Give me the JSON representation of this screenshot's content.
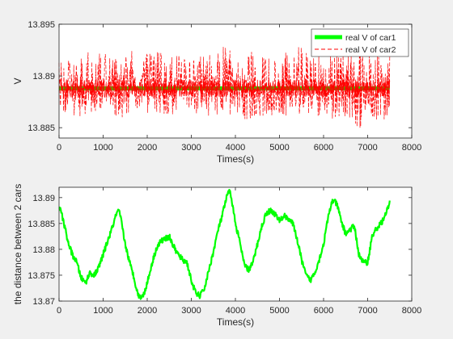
{
  "chart_data": [
    {
      "type": "line",
      "xlabel": "Times(s)",
      "ylabel": "V",
      "xlim": [
        0,
        8000
      ],
      "ylim": [
        13.884,
        13.895
      ],
      "xticks": [
        "0",
        "1000",
        "2000",
        "3000",
        "4000",
        "5000",
        "6000",
        "7000",
        "8000"
      ],
      "yticks": [
        "13.885",
        "13.89",
        "13.895"
      ],
      "legend_position": "top-right",
      "grid": false,
      "series": [
        {
          "name": "real V of car1",
          "color": "#00ff00",
          "style": "solid-thick",
          "x": [
            0,
            500,
            1000,
            1500,
            2000,
            2500,
            3000,
            3500,
            4000,
            4500,
            5000,
            5500,
            6000,
            6500,
            7000,
            7500
          ],
          "y": [
            13.8888,
            13.8888,
            13.8888,
            13.8888,
            13.8888,
            13.8888,
            13.8888,
            13.8888,
            13.8888,
            13.8888,
            13.8888,
            13.8888,
            13.8888,
            13.8888,
            13.8888,
            13.8888
          ]
        },
        {
          "name": "real V of car2",
          "color": "#ff0000",
          "style": "dashed",
          "x": [
            0,
            250,
            500,
            750,
            1000,
            1250,
            1500,
            1750,
            2000,
            2250,
            2500,
            2750,
            3000,
            3250,
            3500,
            3750,
            4000,
            4250,
            4500,
            4750,
            5000,
            5250,
            5500,
            5750,
            6000,
            6250,
            6500,
            6750,
            7000,
            7250,
            7500
          ],
          "y_center": 13.8888,
          "y_min": [
            13.8865,
            13.8862,
            13.886,
            13.8862,
            13.8863,
            13.8862,
            13.8858,
            13.8862,
            13.8863,
            13.8862,
            13.886,
            13.8865,
            13.8862,
            13.8862,
            13.886,
            13.8863,
            13.886,
            13.8858,
            13.886,
            13.8862,
            13.8862,
            13.886,
            13.886,
            13.8858,
            13.8862,
            13.8858,
            13.886,
            13.8843,
            13.8855,
            13.885,
            13.8865
          ],
          "y_max": [
            13.892,
            13.8932,
            13.8928,
            13.8925,
            13.8922,
            13.893,
            13.8928,
            13.8925,
            13.8922,
            13.8928,
            13.892,
            13.8925,
            13.8918,
            13.8922,
            13.892,
            13.893,
            13.8925,
            13.8922,
            13.8928,
            13.8922,
            13.892,
            13.8925,
            13.893,
            13.8922,
            13.8925,
            13.8925,
            13.893,
            13.8948,
            13.8935,
            13.8925,
            13.892
          ]
        }
      ]
    },
    {
      "type": "line",
      "xlabel": "Times(s)",
      "ylabel": "the distance between 2 cars",
      "xlim": [
        0,
        8000
      ],
      "ylim": [
        13.87,
        13.892
      ],
      "xticks": [
        "0",
        "1000",
        "2000",
        "3000",
        "4000",
        "5000",
        "6000",
        "7000",
        "8000"
      ],
      "yticks": [
        "13.87",
        "13.875",
        "13.88",
        "13.885",
        "13.89"
      ],
      "grid": false,
      "series": [
        {
          "color": "#00ff00",
          "x": [
            0,
            100,
            200,
            300,
            400,
            500,
            600,
            700,
            800,
            900,
            1000,
            1100,
            1200,
            1300,
            1350,
            1400,
            1500,
            1600,
            1700,
            1800,
            1900,
            2000,
            2100,
            2200,
            2300,
            2400,
            2500,
            2600,
            2700,
            2800,
            2900,
            3000,
            3100,
            3200,
            3300,
            3400,
            3500,
            3600,
            3700,
            3800,
            3850,
            3900,
            4000,
            4100,
            4200,
            4300,
            4400,
            4500,
            4600,
            4700,
            4800,
            4900,
            5000,
            5100,
            5200,
            5300,
            5400,
            5500,
            5600,
            5700,
            5800,
            5900,
            6000,
            6100,
            6200,
            6300,
            6400,
            6500,
            6600,
            6700,
            6800,
            6900,
            7000,
            7100,
            7200,
            7300,
            7400,
            7500
          ],
          "y": [
            13.8885,
            13.8855,
            13.8815,
            13.879,
            13.8775,
            13.8745,
            13.8735,
            13.8755,
            13.875,
            13.8765,
            13.879,
            13.8815,
            13.884,
            13.8868,
            13.8875,
            13.886,
            13.881,
            13.8775,
            13.8745,
            13.871,
            13.8708,
            13.8735,
            13.877,
            13.88,
            13.8815,
            13.882,
            13.8825,
            13.8805,
            13.879,
            13.878,
            13.8775,
            13.874,
            13.8715,
            13.871,
            13.8725,
            13.876,
            13.8795,
            13.8835,
            13.8865,
            13.89,
            13.8912,
            13.8905,
            13.885,
            13.8815,
            13.877,
            13.876,
            13.8775,
            13.881,
            13.8845,
            13.887,
            13.8875,
            13.8868,
            13.8855,
            13.8865,
            13.886,
            13.885,
            13.882,
            13.878,
            13.875,
            13.874,
            13.8755,
            13.878,
            13.881,
            13.886,
            13.8895,
            13.8888,
            13.8855,
            13.883,
            13.8838,
            13.8845,
            13.879,
            13.8775,
            13.8775,
            13.8825,
            13.884,
            13.885,
            13.8865,
            13.889
          ]
        }
      ]
    }
  ]
}
